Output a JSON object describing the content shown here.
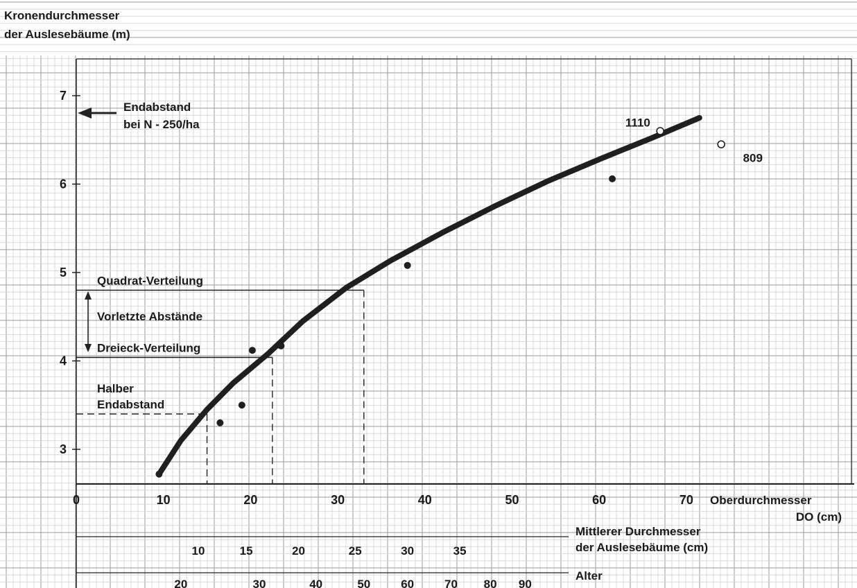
{
  "chart_data": {
    "type": "line",
    "title": "",
    "ylabel_line1": "Kronendurchmesser",
    "ylabel_line2": "der Auslesebäume  (m)",
    "xlabel_line1": "Oberdurchmesser",
    "xlabel_line2": "DO  (cm)",
    "xlim": [
      0,
      90
    ],
    "ylim": [
      2.6,
      7.6
    ],
    "x_ticks": [
      "0",
      "10",
      "20",
      "30",
      "40",
      "50",
      "60",
      "70"
    ],
    "y_ticks": [
      "3",
      "4",
      "5",
      "6",
      "7"
    ],
    "grid": true,
    "curve": {
      "x": [
        9.5,
        12,
        15,
        18,
        22,
        26,
        31,
        36,
        42,
        48,
        54,
        60,
        66,
        71.5
      ],
      "y": [
        2.72,
        3.1,
        3.45,
        3.75,
        4.08,
        4.45,
        4.83,
        5.13,
        5.45,
        5.75,
        6.03,
        6.28,
        6.52,
        6.75
      ]
    },
    "filled_points": [
      {
        "x": 9.5,
        "y": 2.72
      },
      {
        "x": 16.5,
        "y": 3.3
      },
      {
        "x": 19,
        "y": 3.5
      },
      {
        "x": 20.2,
        "y": 4.12
      },
      {
        "x": 23.5,
        "y": 4.17
      },
      {
        "x": 38,
        "y": 5.08
      },
      {
        "x": 61.5,
        "y": 6.06
      }
    ],
    "open_points": [
      {
        "x": 67,
        "y": 6.6
      },
      {
        "x": 74,
        "y": 6.45
      }
    ],
    "point_labels": [
      {
        "text": "1110",
        "x": 63,
        "y": 6.65
      },
      {
        "text": "809",
        "x": 76.5,
        "y": 6.25
      }
    ],
    "guide_lines": [
      {
        "label": "Quadrat-Verteilung",
        "y": 4.8,
        "x_end": 33
      },
      {
        "label": "Dreieck-Verteilung",
        "y": 4.04,
        "x_end": 22.5
      },
      {
        "label_line1": "Halber",
        "label_line2": "Endabstand",
        "y": 3.4,
        "x_end": 15
      }
    ],
    "annotations": {
      "endabstand_line1": "Endabstand",
      "endabstand_line2": "bei  N - 250/ha",
      "vorletzte": "Vorletzte  Abstände",
      "endabstand_y": 6.95
    },
    "secondary_axes": [
      {
        "label_line1": "Mittlerer  Durchmesser",
        "label_line2": "der Auslesebäume  (cm)",
        "ticks": [
          {
            "label": "10",
            "x": 14
          },
          {
            "label": "15",
            "x": 19.5
          },
          {
            "label": "20",
            "x": 25.5
          },
          {
            "label": "25",
            "x": 32
          },
          {
            "label": "30",
            "x": 38
          },
          {
            "label": "35",
            "x": 44
          }
        ]
      },
      {
        "label_line1": "Alter",
        "ticks": [
          {
            "label": "20",
            "x": 12
          },
          {
            "label": "30",
            "x": 21
          },
          {
            "label": "40",
            "x": 27.5
          },
          {
            "label": "50",
            "x": 33
          },
          {
            "label": "60",
            "x": 38
          },
          {
            "label": "70",
            "x": 43
          },
          {
            "label": "80",
            "x": 47.5
          },
          {
            "label": "90",
            "x": 51.5
          }
        ]
      }
    ]
  }
}
